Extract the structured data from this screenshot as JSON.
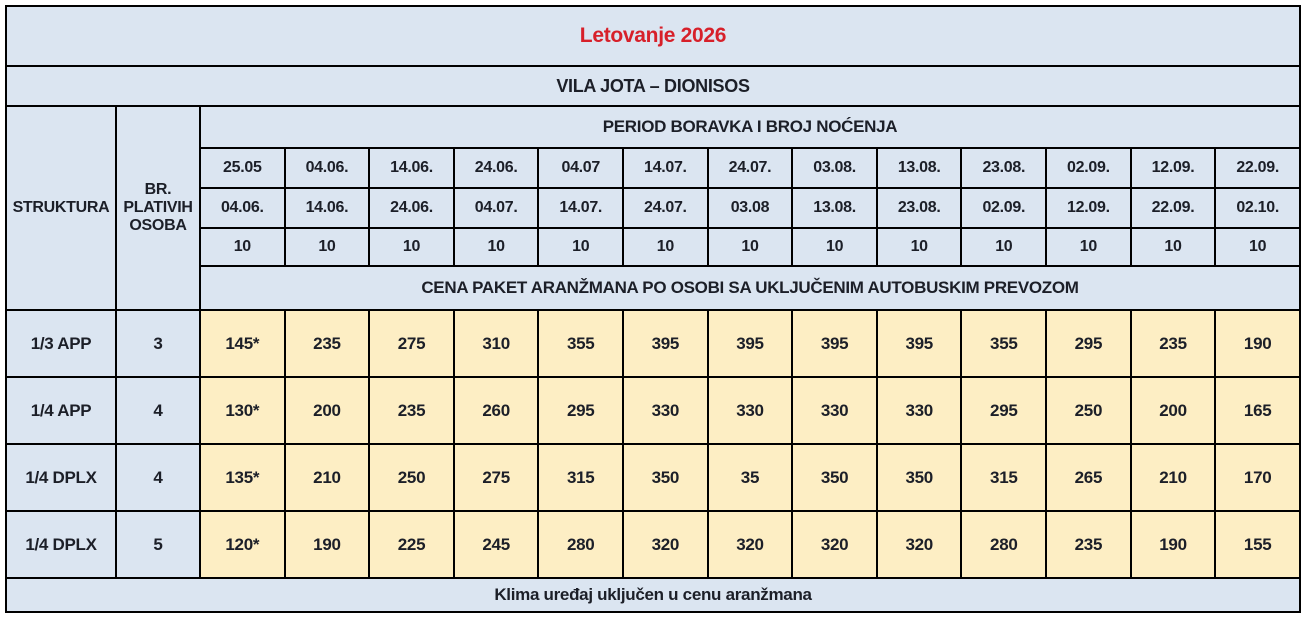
{
  "title": "Letovanje 2026",
  "subtitle": "VILA JOTA – DIONISOS",
  "colors": {
    "title_red": "#d7202a",
    "header_blue": "#dbe5f1",
    "price_yellow": "#fdeec4",
    "text_ink": "#1c1f28",
    "grid_line": "#000000"
  },
  "table": {
    "struktura_header": "STRUKTURA",
    "persons_header": "BR. PLATIVIH OSOBA",
    "period_header": "PERIOD BORAVKA I BROJ NOĆENJA",
    "price_header": "CENA PAKET ARANŽMANA PO OSOBI SA UKLJUČENIM AUTOBUSKIM PREVOZOM",
    "date_from": [
      "25.05",
      "04.06.",
      "14.06.",
      "24.06.",
      "04.07",
      "14.07.",
      "24.07.",
      "03.08.",
      "13.08.",
      "23.08.",
      "02.09.",
      "12.09.",
      "22.09."
    ],
    "date_to": [
      "04.06.",
      "14.06.",
      "24.06.",
      "04.07.",
      "14.07.",
      "24.07.",
      "03.08",
      "13.08.",
      "23.08.",
      "02.09.",
      "12.09.",
      "22.09.",
      "02.10."
    ],
    "nights": [
      "10",
      "10",
      "10",
      "10",
      "10",
      "10",
      "10",
      "10",
      "10",
      "10",
      "10",
      "10",
      "10"
    ],
    "rows": [
      {
        "struktura": "1/3 APP",
        "persons": "3",
        "prices": [
          "145*",
          "235",
          "275",
          "310",
          "355",
          "395",
          "395",
          "395",
          "395",
          "355",
          "295",
          "235",
          "190"
        ]
      },
      {
        "struktura": "1/4 APP",
        "persons": "4",
        "prices": [
          "130*",
          "200",
          "235",
          "260",
          "295",
          "330",
          "330",
          "330",
          "330",
          "295",
          "250",
          "200",
          "165"
        ]
      },
      {
        "struktura": "1/4 DPLX",
        "persons": "4",
        "prices": [
          "135*",
          "210",
          "250",
          "275",
          "315",
          "350",
          "35",
          "350",
          "350",
          "315",
          "265",
          "210",
          "170"
        ]
      },
      {
        "struktura": "1/4 DPLX",
        "persons": "5",
        "prices": [
          "120*",
          "190",
          "225",
          "245",
          "280",
          "320",
          "320",
          "320",
          "320",
          "280",
          "235",
          "190",
          "155"
        ]
      }
    ]
  },
  "footer": "Klima uređaj uključen u cenu aranžmana"
}
